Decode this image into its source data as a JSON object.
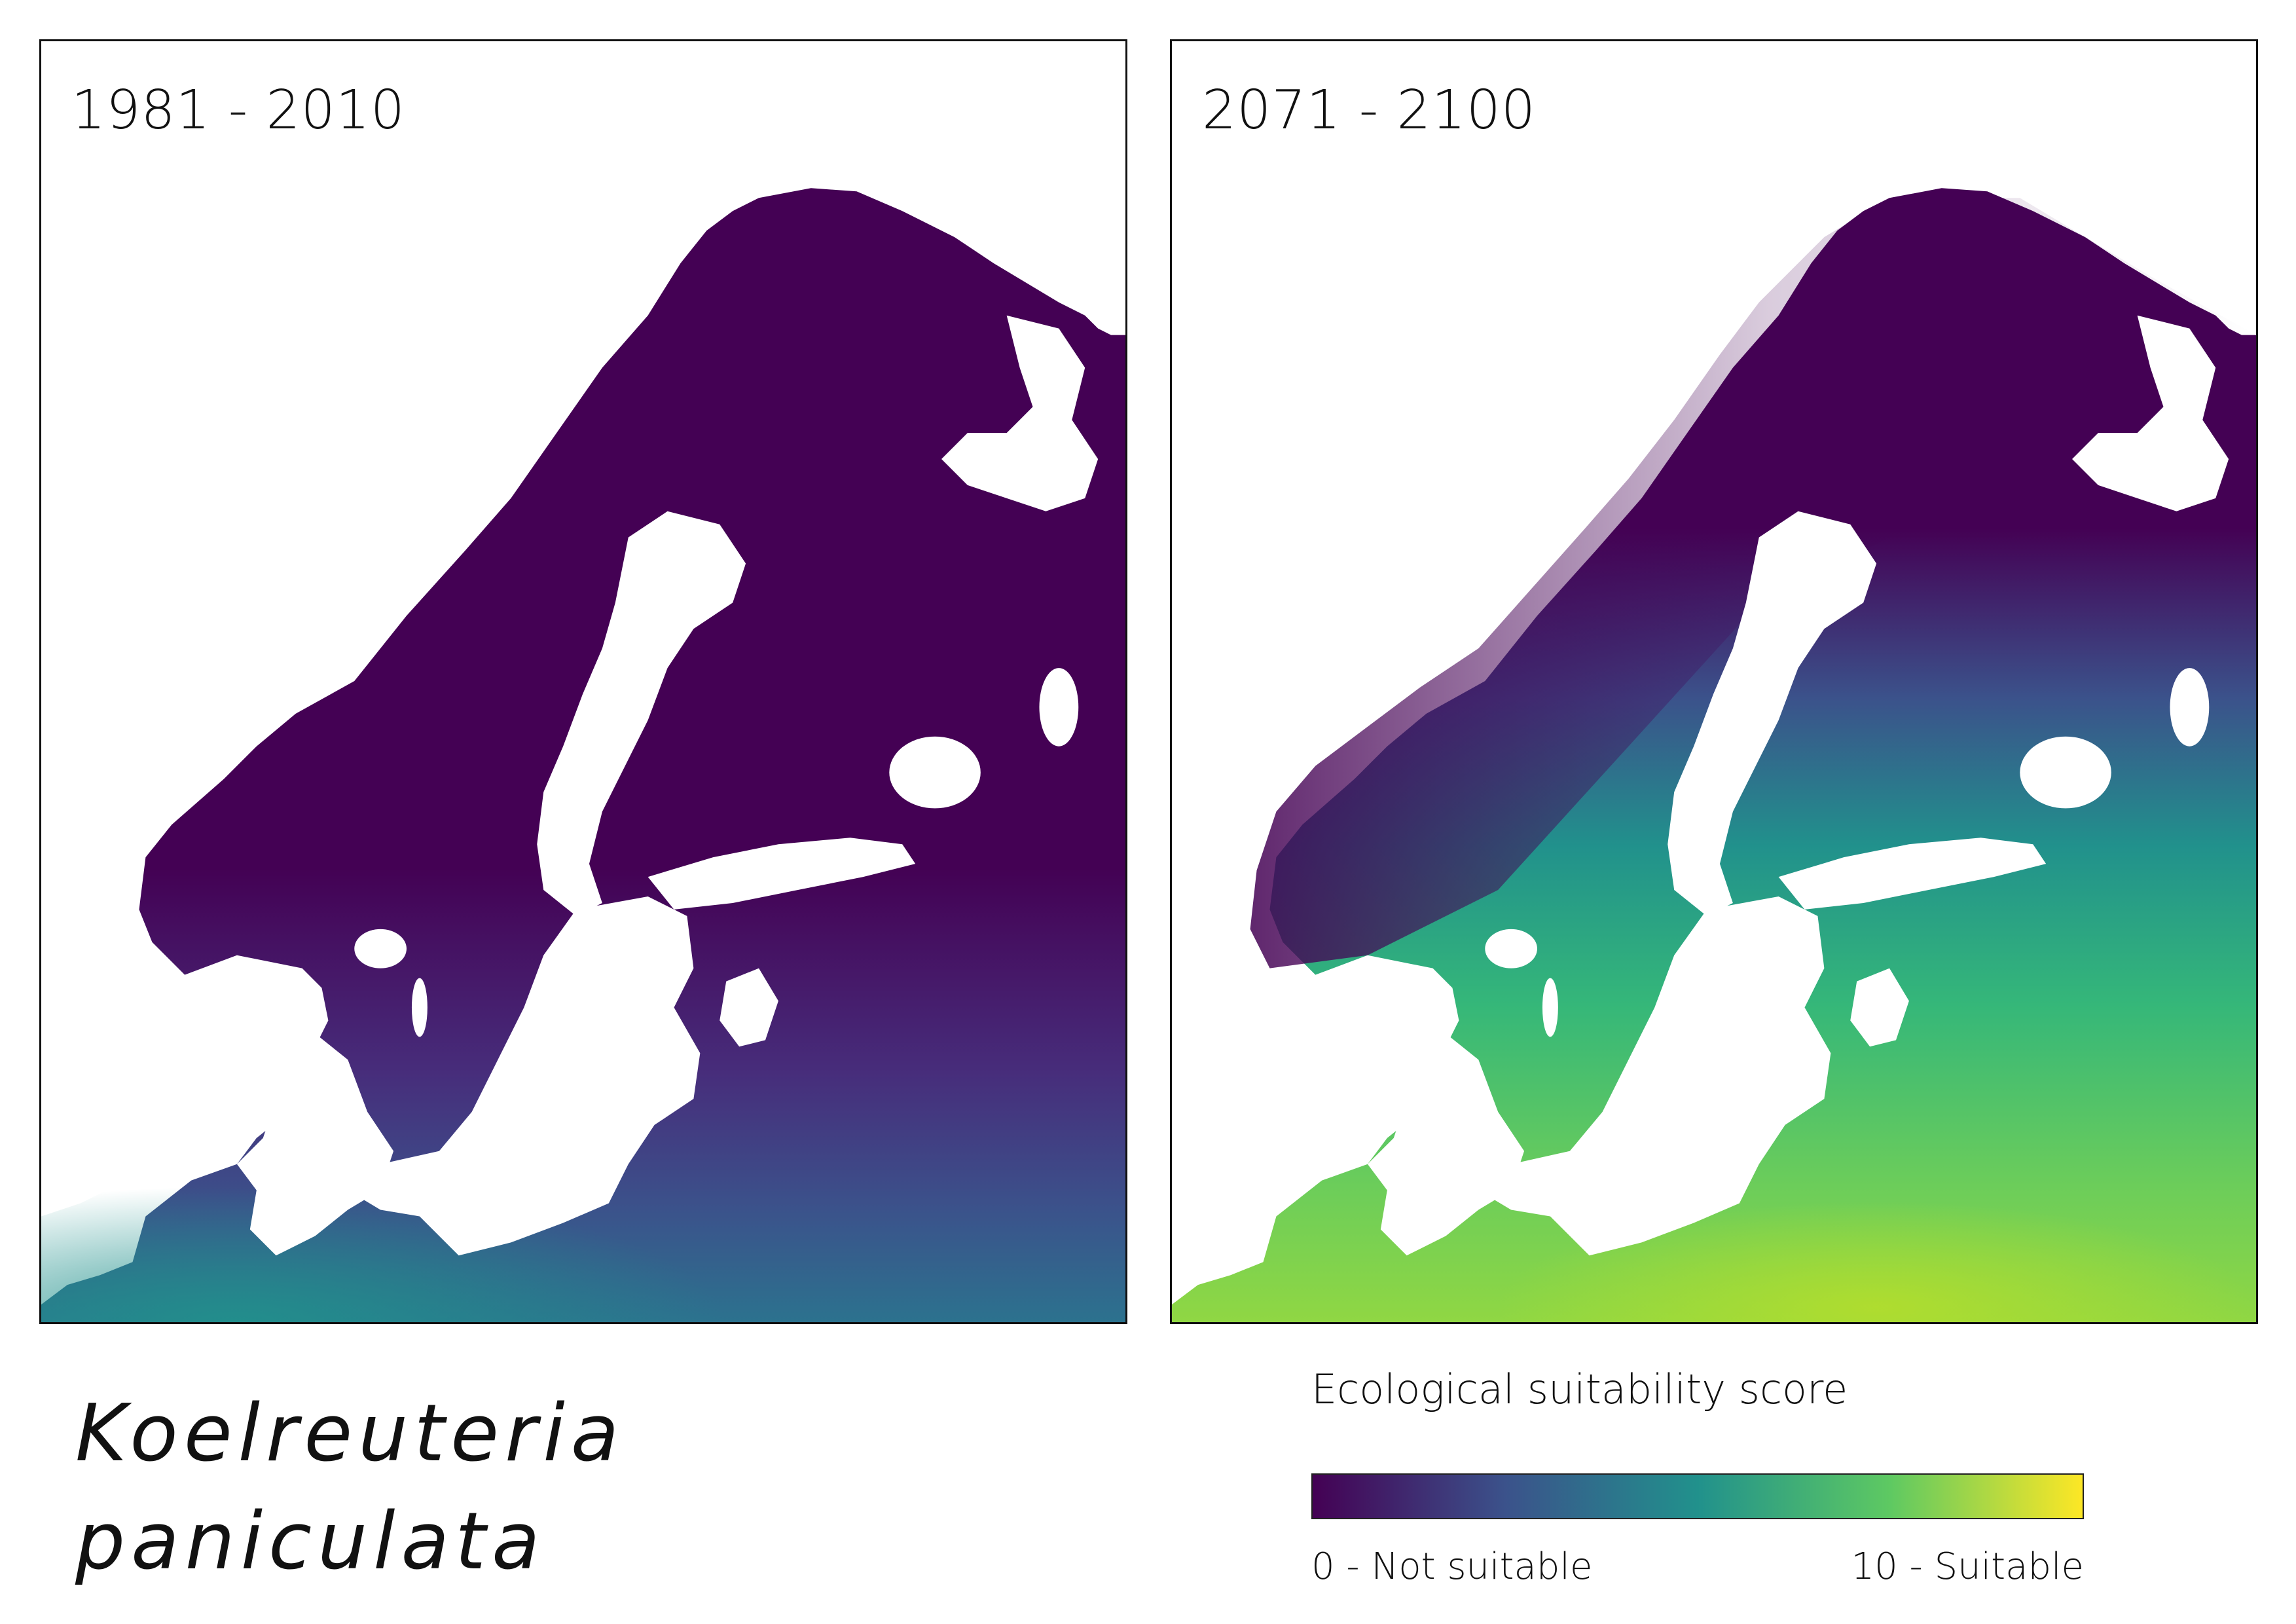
{
  "maps": [
    {
      "period": "1981 - 2010",
      "suitability_summary": "mostly 0-1 across the region; 3-5 along the southern Baltic coast and northern Germany/Poland"
    },
    {
      "period": "2071 - 2100",
      "suitability_summary": "0-1 in northern Scandinavia and the mountains; 4-6 across southern Sweden, Finland and the Baltics; 7-9 in Germany, Poland and Belarus"
    }
  ],
  "species": {
    "line1": "Koelreuteria",
    "line2": "paniculata"
  },
  "legend": {
    "title": "Ecological suitability score",
    "min_label": "0 - Not suitable",
    "max_label": "10 - Suitable",
    "scale": "viridis",
    "min_value": 0,
    "max_value": 10
  },
  "colors": {
    "viridis_0": "#440154",
    "viridis_25": "#3b528b",
    "viridis_50": "#21918c",
    "viridis_75": "#5ec962",
    "viridis_100": "#fde725",
    "water": "#ffffff"
  }
}
